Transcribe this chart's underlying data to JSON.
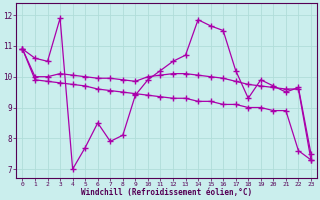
{
  "xlabel": "Windchill (Refroidissement éolien,°C)",
  "xlim": [
    -0.5,
    23.5
  ],
  "ylim": [
    6.7,
    12.4
  ],
  "yticks": [
    7,
    8,
    9,
    10,
    11,
    12
  ],
  "xticks": [
    0,
    1,
    2,
    3,
    4,
    5,
    6,
    7,
    8,
    9,
    10,
    11,
    12,
    13,
    14,
    15,
    16,
    17,
    18,
    19,
    20,
    21,
    22,
    23
  ],
  "bg_color": "#caeeed",
  "grid_color": "#b0ddd9",
  "line_color": "#aa00aa",
  "line1_x": [
    0,
    1,
    2,
    3,
    4,
    5,
    6,
    7,
    8,
    9,
    10,
    11,
    12,
    13,
    14,
    15,
    16,
    17,
    18,
    19,
    20,
    21,
    22,
    23
  ],
  "line1_y": [
    10.9,
    9.9,
    9.85,
    9.8,
    9.75,
    9.7,
    9.6,
    9.55,
    9.5,
    9.45,
    9.4,
    9.35,
    9.3,
    9.3,
    9.2,
    9.2,
    9.1,
    9.1,
    9.0,
    9.0,
    8.9,
    8.9,
    7.6,
    7.3
  ],
  "line2_x": [
    0,
    1,
    2,
    3,
    4,
    5,
    6,
    7,
    8,
    9,
    10,
    11,
    12,
    13,
    14,
    15,
    16,
    17,
    18,
    19,
    20,
    21,
    22,
    23
  ],
  "line2_y": [
    10.9,
    10.6,
    10.5,
    11.9,
    7.0,
    7.7,
    8.5,
    7.9,
    8.1,
    9.4,
    9.9,
    10.2,
    10.5,
    10.7,
    11.85,
    11.65,
    11.5,
    10.2,
    9.3,
    9.9,
    9.7,
    9.5,
    9.65,
    7.5
  ],
  "line3_x": [
    0,
    1,
    2,
    3,
    4,
    5,
    6,
    7,
    8,
    9,
    10,
    11,
    12,
    13,
    14,
    15,
    16,
    17,
    18,
    19,
    20,
    21,
    22,
    23
  ],
  "line3_y": [
    10.9,
    10.0,
    10.0,
    10.1,
    10.05,
    10.0,
    9.95,
    9.95,
    9.9,
    9.85,
    10.0,
    10.05,
    10.1,
    10.1,
    10.05,
    10.0,
    9.95,
    9.85,
    9.75,
    9.7,
    9.65,
    9.6,
    9.6,
    7.3
  ]
}
